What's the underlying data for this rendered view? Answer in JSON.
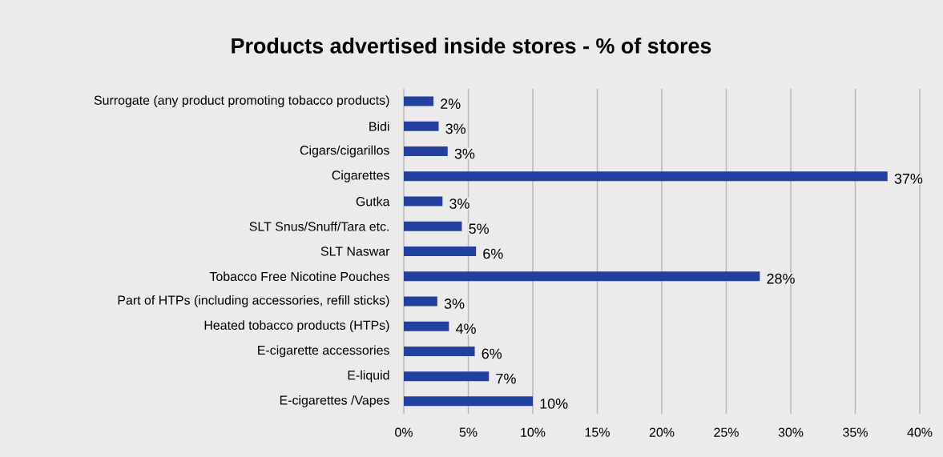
{
  "chart_data": {
    "type": "bar",
    "orientation": "horizontal",
    "title": "Products advertised inside stores - % of stores",
    "categories": [
      "Surrogate (any product promoting tobacco products)",
      "Bidi",
      "Cigars/cigarillos",
      "Cigarettes",
      "Gutka",
      "SLT Snus/Snuff/Tara etc.",
      "SLT Naswar",
      "Tobacco Free Nicotine Pouches",
      "Part of HTPs (including accessories, refill sticks)",
      "Heated tobacco products (HTPs)",
      "E-cigarette accessories",
      "E-liquid",
      "E-cigarettes /Vapes"
    ],
    "values": [
      2.3,
      2.7,
      3.4,
      37.5,
      3.0,
      4.5,
      5.6,
      27.6,
      2.6,
      3.5,
      5.5,
      6.6,
      10.0
    ],
    "value_labels": [
      "2%",
      "3%",
      "3%",
      "37%",
      "3%",
      "5%",
      "6%",
      "28%",
      "3%",
      "4%",
      "6%",
      "7%",
      "10%"
    ],
    "color": "#2340a0",
    "xlim": [
      0,
      40
    ],
    "xticks": [
      {
        "value": 0,
        "label": "0%"
      },
      {
        "value": 5,
        "label": "5%"
      },
      {
        "value": 10,
        "label": "10%"
      },
      {
        "value": 15,
        "label": "15%"
      },
      {
        "value": 20,
        "label": "20%"
      },
      {
        "value": 25,
        "label": "25%"
      },
      {
        "value": 30,
        "label": "30%"
      },
      {
        "value": 35,
        "label": "35%"
      },
      {
        "value": 40,
        "label": "40%"
      }
    ],
    "grid": "x"
  }
}
